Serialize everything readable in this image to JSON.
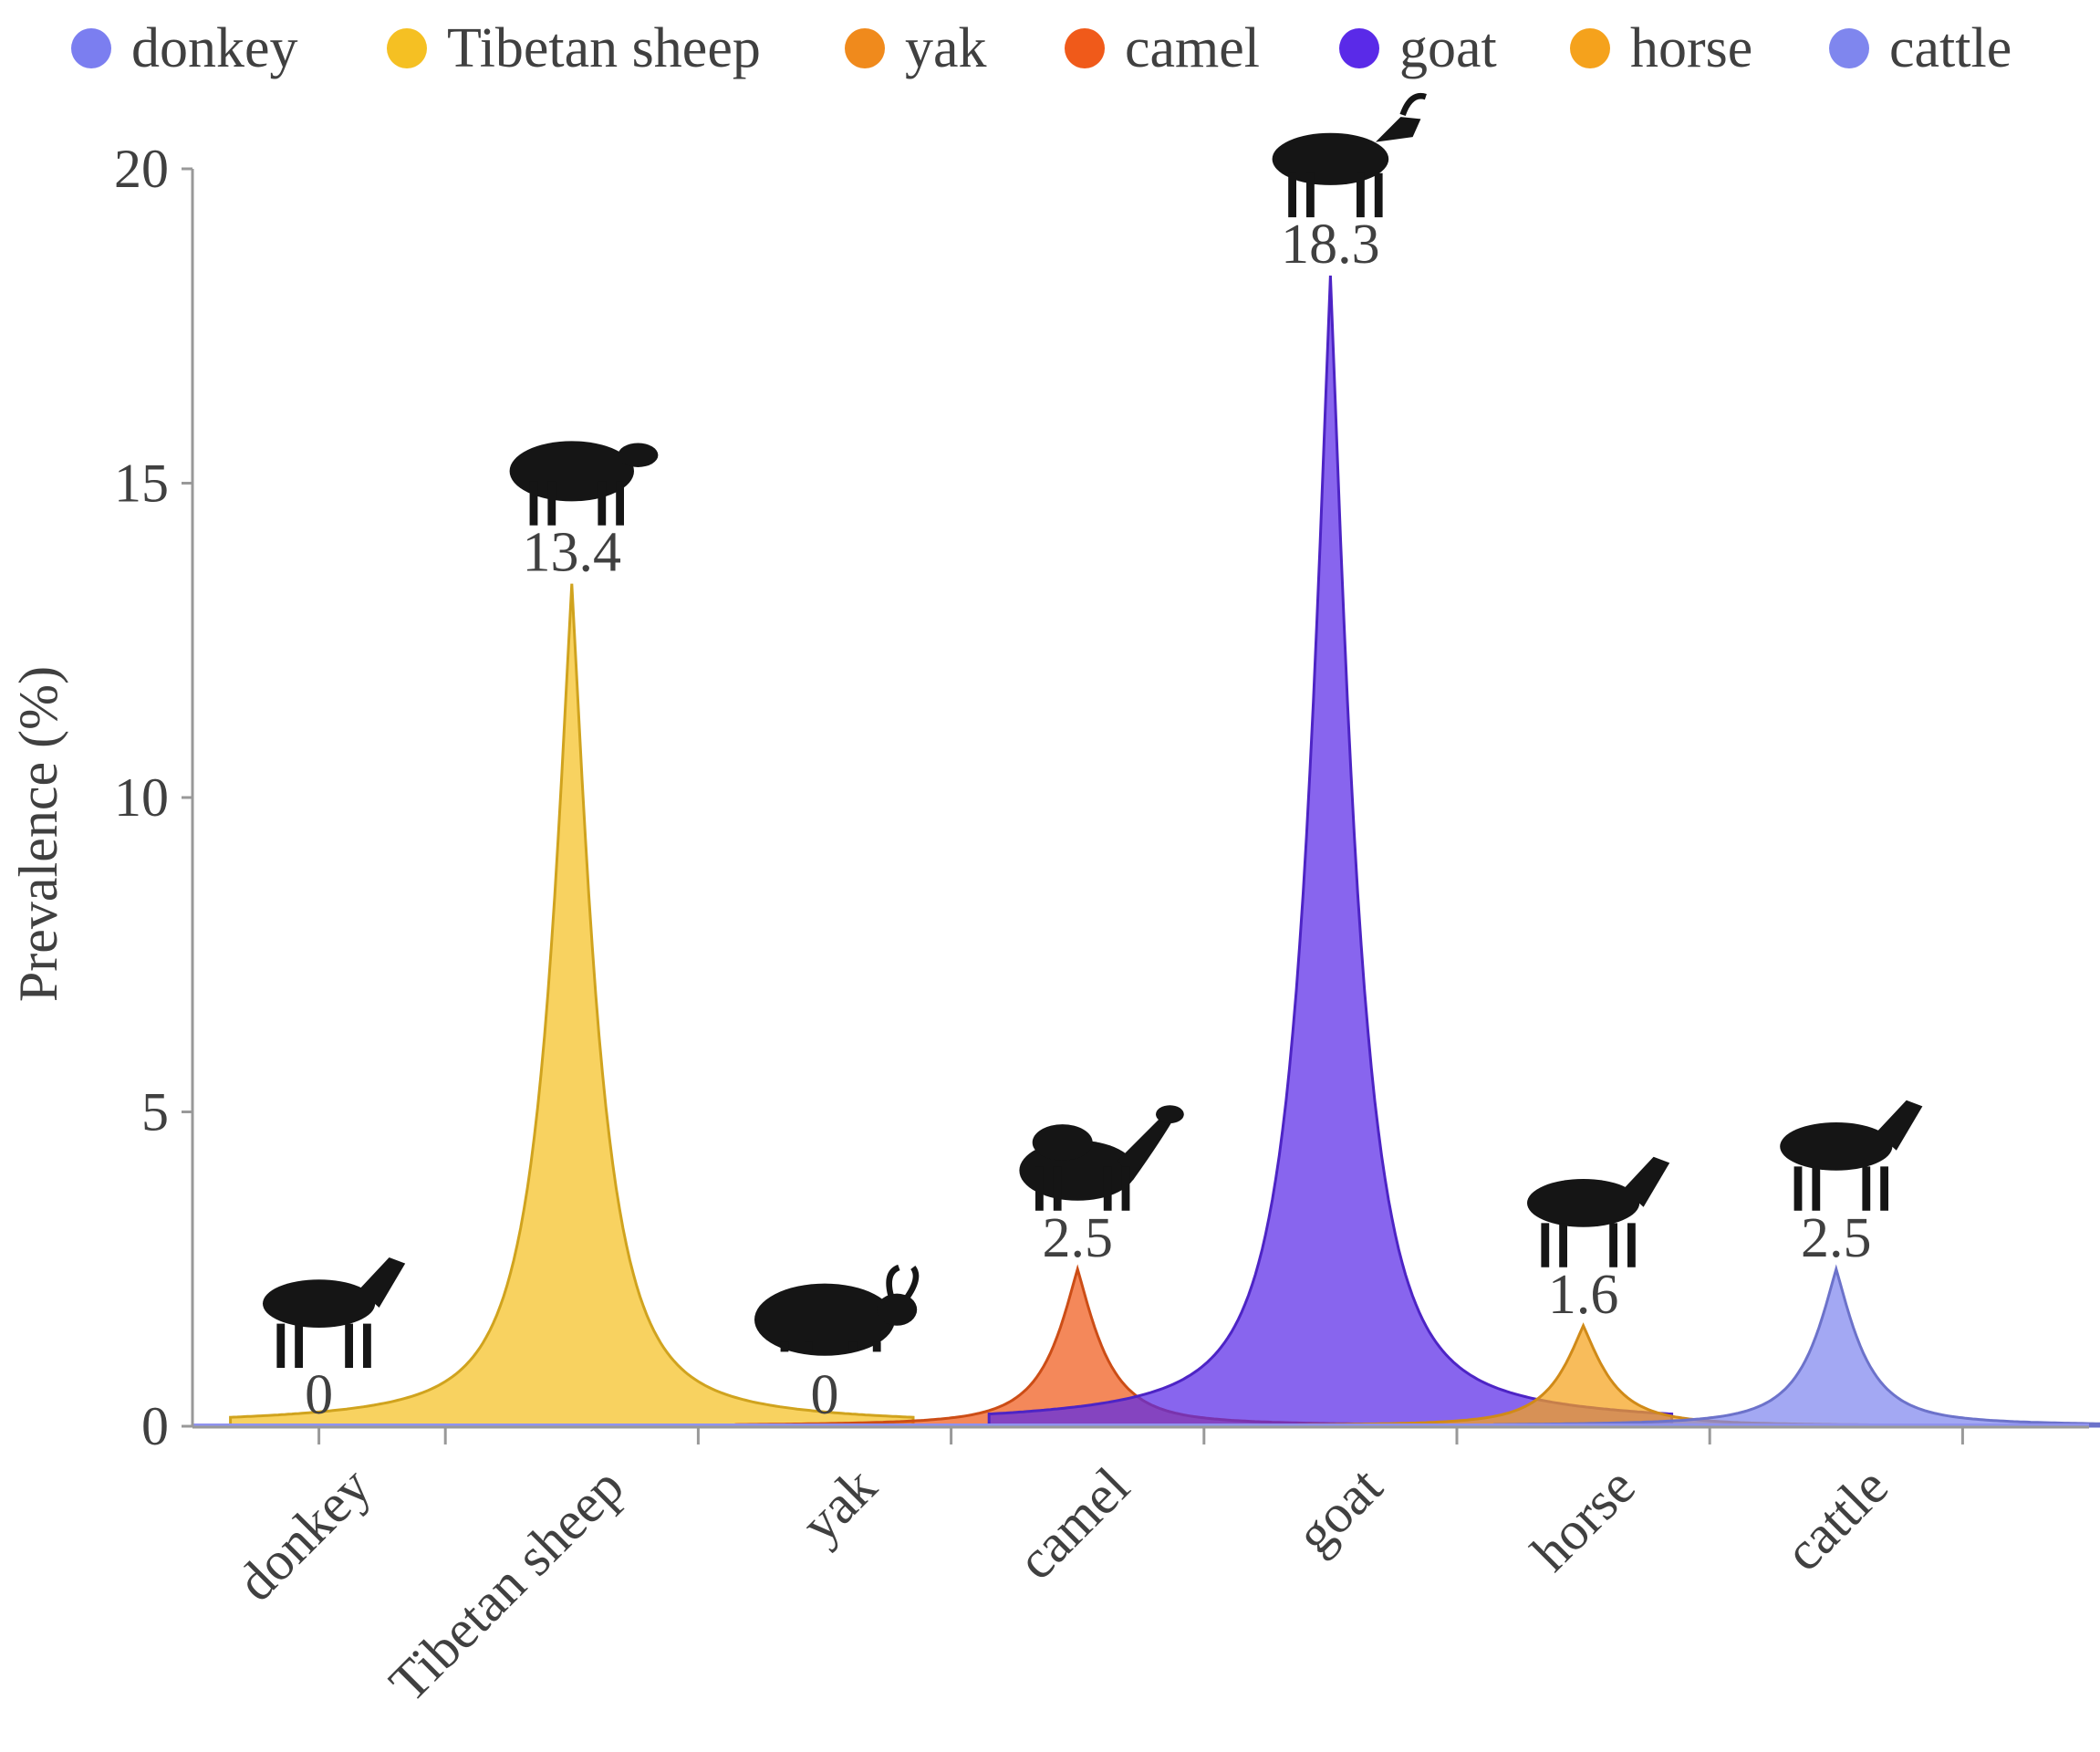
{
  "chart_data": {
    "type": "area",
    "title": "",
    "xlabel": "",
    "ylabel": "Prevalence (%)",
    "ylim": [
      0,
      20
    ],
    "yticks": [
      0,
      5,
      10,
      15,
      20
    ],
    "grid": false,
    "legend_position": "top",
    "categories": [
      "donkey",
      "Tibetan sheep",
      "yak",
      "camel",
      "goat",
      "horse",
      "cattle"
    ],
    "values": [
      0,
      13.4,
      0,
      2.5,
      18.3,
      1.6,
      2.5
    ],
    "value_labels": [
      "0",
      "13.4",
      "0",
      "2.5",
      "18.3",
      "1.6",
      "2.5"
    ],
    "colors": [
      "#7b7ef0",
      "#f5c023",
      "#f08a1c",
      "#f05a1a",
      "#5a2ae8",
      "#f5a21c",
      "#7f86ee"
    ],
    "icons": [
      "donkey-icon",
      "sheep-icon",
      "yak-icon",
      "camel-icon",
      "goat-icon",
      "horse-icon",
      "cattle-icon"
    ]
  }
}
